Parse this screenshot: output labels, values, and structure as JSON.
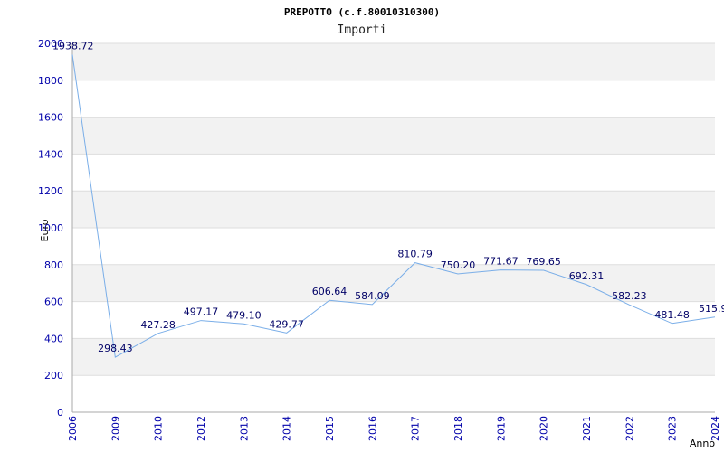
{
  "chart_data": {
    "type": "line",
    "title": "PREPOTTO (c.f.80010310300)",
    "subtitle": "Importi",
    "xlabel": "Anno",
    "ylabel": "Euro",
    "ylim": [
      0,
      2000
    ],
    "yticks": [
      0,
      200,
      400,
      600,
      800,
      1000,
      1200,
      1400,
      1600,
      1800,
      2000
    ],
    "grid": true,
    "categories": [
      "2006",
      "2009",
      "2010",
      "2012",
      "2013",
      "2014",
      "2015",
      "2016",
      "2017",
      "2018",
      "2019",
      "2020",
      "2021",
      "2022",
      "2023",
      "2024"
    ],
    "values": [
      1938.72,
      298.43,
      427.28,
      497.17,
      479.1,
      429.77,
      606.64,
      584.09,
      810.79,
      750.2,
      771.67,
      769.65,
      692.31,
      582.23,
      481.48,
      515.9
    ],
    "value_labels": [
      "1938.72",
      "298.43",
      "427.28",
      "497.17",
      "479.10",
      "429.77",
      "606.64",
      "584.09",
      "810.79",
      "750.20",
      "771.67",
      "769.65",
      "692.31",
      "582.23",
      "481.48",
      "515.9"
    ],
    "colors": {
      "line": "#7aaee8",
      "band": "#f2f2f2",
      "grid": "#dddddd",
      "axis": "#aaaaaa"
    }
  }
}
